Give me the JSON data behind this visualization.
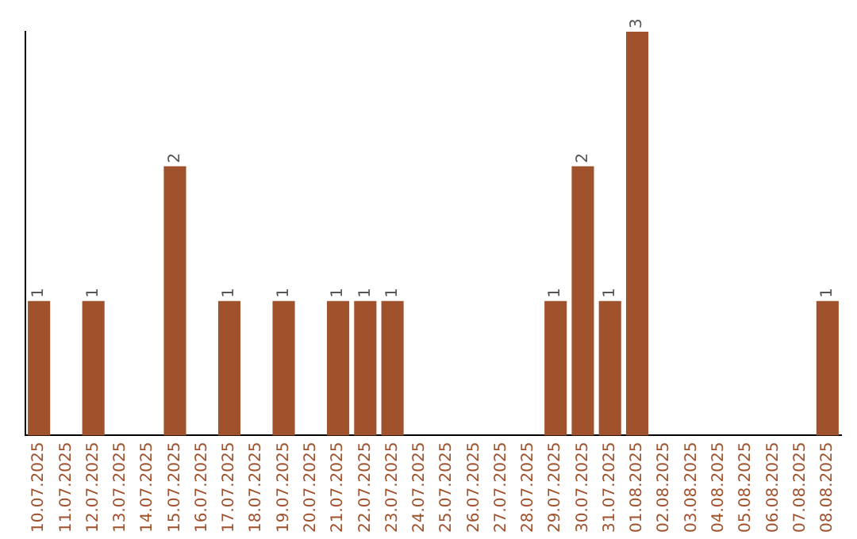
{
  "chart_data": {
    "type": "bar",
    "categories": [
      "10.07.2025",
      "11.07.2025",
      "12.07.2025",
      "13.07.2025",
      "14.07.2025",
      "15.07.2025",
      "16.07.2025",
      "17.07.2025",
      "18.07.2025",
      "19.07.2025",
      "20.07.2025",
      "21.07.2025",
      "22.07.2025",
      "23.07.2025",
      "24.07.2025",
      "25.07.2025",
      "26.07.2025",
      "27.07.2025",
      "28.07.2025",
      "29.07.2025",
      "30.07.2025",
      "31.07.2025",
      "01.08.2025",
      "02.08.2025",
      "03.08.2025",
      "04.08.2025",
      "05.08.2025",
      "06.08.2025",
      "07.08.2025",
      "08.08.2025"
    ],
    "values": [
      1,
      0,
      1,
      0,
      0,
      2,
      0,
      1,
      0,
      1,
      0,
      1,
      1,
      1,
      0,
      0,
      0,
      0,
      0,
      1,
      2,
      1,
      3,
      0,
      0,
      0,
      0,
      0,
      0,
      1
    ],
    "value_labels": [
      "1",
      null,
      "1",
      null,
      null,
      "2",
      null,
      "1",
      null,
      "1",
      null,
      "1",
      "1",
      "1",
      null,
      null,
      null,
      null,
      null,
      "1",
      "2",
      "1",
      "3",
      null,
      null,
      null,
      null,
      null,
      null,
      "1"
    ],
    "color": "#a0522d",
    "tick_labels": "x",
    "grid": false,
    "legend": false
  }
}
